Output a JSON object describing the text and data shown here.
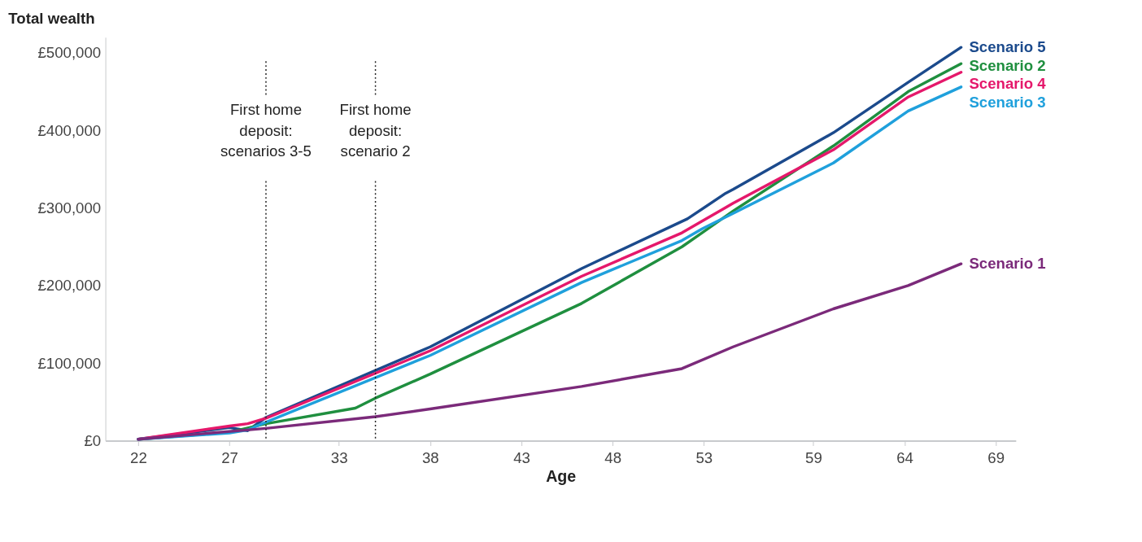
{
  "chart_data": {
    "type": "line",
    "ylabel": "Total wealth",
    "xlabel": "Age",
    "xlim": [
      20.2,
      70.1
    ],
    "xticks": [
      22,
      27,
      33,
      38,
      43,
      48,
      53,
      59,
      64,
      69
    ],
    "ylim": [
      0,
      520000
    ],
    "yticks": [
      {
        "value": 0,
        "label": "£0"
      },
      {
        "value": 100000,
        "label": "£100,000"
      },
      {
        "value": 200000,
        "label": "£200,000"
      },
      {
        "value": 300000,
        "label": "£300,000"
      },
      {
        "value": 400000,
        "label": "£400,000"
      },
      {
        "value": 500000,
        "label": "£500,000"
      }
    ],
    "grid": false,
    "line_style": "solid",
    "series": [
      {
        "name": "Scenario 5",
        "color": "#1b4a8c",
        "x": [
          22,
          27,
          28,
          29,
          38,
          46.3,
          52.1,
          54.2,
          54.6,
          60.1,
          64.2,
          67.1
        ],
        "values": [
          2000,
          17000,
          13000,
          30000,
          121000,
          222000,
          286000,
          319000,
          324000,
          397000,
          462000,
          507000
        ]
      },
      {
        "name": "Scenario 2",
        "color": "#1f8f3f",
        "x": [
          22,
          27,
          29,
          33.9,
          35,
          38,
          46.3,
          51.8,
          52.9,
          54.6,
          60.1,
          64.2,
          67.1
        ],
        "values": [
          2000,
          11000,
          22000,
          42000,
          55000,
          86000,
          177000,
          250000,
          268000,
          296000,
          380000,
          450000,
          486000
        ]
      },
      {
        "name": "Scenario 4",
        "color": "#e5186b",
        "x": [
          22,
          27,
          28,
          29,
          38,
          46.3,
          51.8,
          52.9,
          54.6,
          60.1,
          64.2,
          67.1
        ],
        "values": [
          2000,
          19000,
          22000,
          29000,
          116000,
          212000,
          268000,
          283000,
          306000,
          375000,
          443000,
          475000
        ]
      },
      {
        "name": "Scenario 3",
        "color": "#1fa0dc",
        "x": [
          22,
          27,
          28,
          29,
          38,
          46.3,
          51.8,
          52.9,
          54.6,
          60.1,
          64.2,
          67.1
        ],
        "values": [
          2000,
          10000,
          14000,
          24000,
          110000,
          204000,
          258000,
          273000,
          293000,
          358000,
          425000,
          456000
        ]
      },
      {
        "name": "Scenario 1",
        "color": "#7b2a7a",
        "x": [
          22,
          29,
          35,
          38,
          46.3,
          51.8,
          54.6,
          60.1,
          64.2,
          67.1
        ],
        "values": [
          2000,
          16000,
          31000,
          41000,
          70000,
          93000,
          121000,
          170000,
          200000,
          228000
        ]
      }
    ],
    "ref_lines": [
      {
        "axis": "x",
        "value": 29,
        "label": "First home\ndeposit:\nscenarios 3-5",
        "line_style": "dotted",
        "color": "#222222"
      },
      {
        "axis": "x",
        "value": 35,
        "label": "First home\ndeposit:\nscenario 2",
        "line_style": "dotted",
        "color": "#222222"
      }
    ]
  }
}
